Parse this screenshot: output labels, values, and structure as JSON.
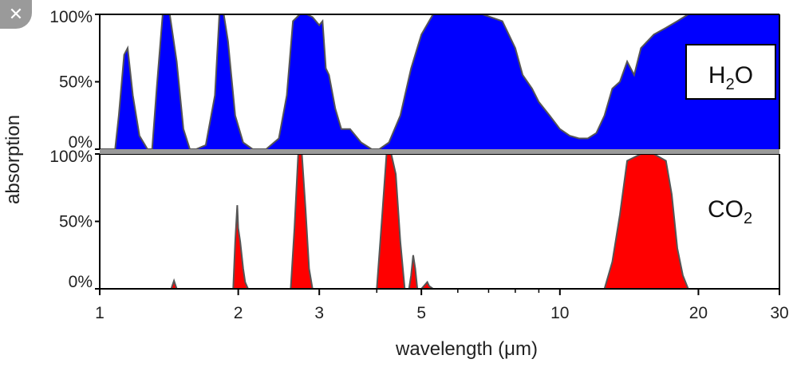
{
  "close_icon": "close-icon",
  "chart_data": [
    {
      "type": "area",
      "panel": "top",
      "legend": {
        "label": "H",
        "sub": "2",
        "suffix": "O"
      },
      "fill_color": "#0000ff",
      "line_color": "#555555",
      "xscale": "log",
      "xlim": [
        1,
        30
      ],
      "ylim": [
        0,
        100
      ],
      "y_ticks": [
        "0%",
        "50%",
        "100%"
      ],
      "y_tick_values": [
        0,
        50,
        100
      ],
      "x": [
        1.0,
        1.08,
        1.1,
        1.13,
        1.15,
        1.18,
        1.22,
        1.27,
        1.3,
        1.33,
        1.37,
        1.42,
        1.47,
        1.52,
        1.57,
        1.62,
        1.7,
        1.78,
        1.82,
        1.86,
        1.9,
        1.97,
        2.05,
        2.15,
        2.3,
        2.45,
        2.55,
        2.63,
        2.72,
        2.82,
        2.9,
        3.0,
        3.05,
        3.1,
        3.15,
        3.25,
        3.35,
        3.5,
        3.7,
        3.9,
        4.05,
        4.25,
        4.5,
        4.75,
        5.0,
        5.3,
        5.7,
        6.2,
        6.8,
        7.5,
        8.0,
        8.3,
        8.7,
        9.0,
        9.5,
        10.0,
        10.5,
        11.0,
        11.5,
        12.0,
        12.5,
        13.0,
        13.5,
        14.0,
        14.5,
        15.0,
        16.0,
        17.0,
        18.0,
        19.0,
        20.0,
        21.0,
        22.0,
        24.0,
        30.0
      ],
      "values": [
        0,
        0,
        25,
        70,
        75,
        40,
        10,
        0,
        0,
        45,
        100,
        100,
        65,
        15,
        0,
        0,
        3,
        40,
        100,
        100,
        80,
        25,
        5,
        0,
        0,
        8,
        40,
        95,
        100,
        100,
        98,
        92,
        95,
        60,
        55,
        30,
        15,
        15,
        5,
        0,
        0,
        5,
        25,
        60,
        85,
        100,
        100,
        100,
        100,
        95,
        75,
        55,
        45,
        35,
        25,
        15,
        10,
        8,
        8,
        12,
        25,
        45,
        50,
        65,
        55,
        75,
        85,
        90,
        95,
        100,
        100,
        100,
        100,
        100,
        100
      ]
    },
    {
      "type": "area",
      "panel": "bottom",
      "legend": {
        "label": "CO",
        "sub": "2",
        "suffix": ""
      },
      "fill_color": "#ff0000",
      "line_color": "#555555",
      "xscale": "log",
      "xlim": [
        1,
        30
      ],
      "ylim": [
        0,
        100
      ],
      "y_ticks": [
        "0%",
        "50%",
        "100%"
      ],
      "y_tick_values": [
        0,
        50,
        100
      ],
      "x": [
        1.0,
        1.43,
        1.45,
        1.47,
        1.95,
        1.97,
        1.99,
        2.0,
        2.02,
        2.05,
        2.07,
        2.1,
        2.6,
        2.65,
        2.7,
        2.75,
        2.8,
        2.85,
        2.9,
        4.0,
        4.1,
        4.2,
        4.3,
        4.4,
        4.5,
        4.6,
        4.7,
        4.75,
        4.8,
        4.85,
        4.9,
        5.0,
        5.15,
        5.2,
        5.3,
        12.5,
        13.0,
        13.5,
        14.0,
        15.0,
        16.0,
        17.0,
        17.5,
        18.0,
        18.5,
        19.0,
        30.0
      ],
      "values": [
        0,
        0,
        6,
        0,
        0,
        35,
        62,
        45,
        35,
        15,
        5,
        0,
        0,
        45,
        100,
        100,
        60,
        15,
        0,
        0,
        50,
        100,
        100,
        85,
        35,
        0,
        0,
        10,
        25,
        15,
        0,
        0,
        5,
        2,
        0,
        0,
        20,
        55,
        95,
        100,
        100,
        95,
        70,
        30,
        10,
        0,
        0
      ]
    }
  ],
  "x_ticks": [
    "1",
    "2",
    "3",
    "5",
    "10",
    "20",
    "30"
  ],
  "x_tick_values": [
    1,
    2,
    3,
    5,
    10,
    20,
    30
  ],
  "xlabel": "wavelength (μm)",
  "ylabel": "absorption"
}
